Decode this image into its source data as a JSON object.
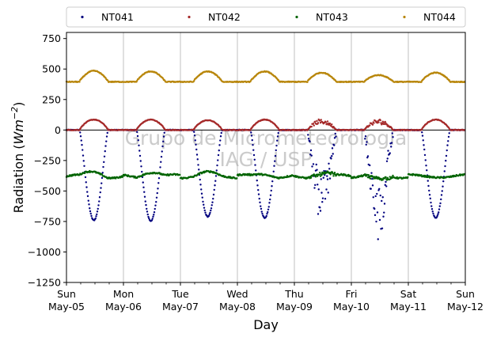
{
  "chart_data": {
    "type": "scatter",
    "xlabel": "Day",
    "ylabel_prefix": "Radiation (",
    "ylabel_unit_base": "Wm",
    "ylabel_unit_exp": "−2",
    "ylabel_suffix": ")",
    "ylim": [
      -1250,
      800
    ],
    "yticks": [
      -1250,
      -1000,
      -750,
      -500,
      -250,
      0,
      250,
      500,
      750
    ],
    "xlim": [
      "2019-05-05",
      "2019-05-12"
    ],
    "xticks": [
      {
        "dow": "Sun",
        "date": "May-05"
      },
      {
        "dow": "Mon",
        "date": "May-06"
      },
      {
        "dow": "Tue",
        "date": "May-07"
      },
      {
        "dow": "Wed",
        "date": "May-08"
      },
      {
        "dow": "Thu",
        "date": "May-09"
      },
      {
        "dow": "Fri",
        "date": "May-10"
      },
      {
        "dow": "Sat",
        "date": "May-11"
      },
      {
        "dow": "Sun",
        "date": "May-12"
      }
    ],
    "vertical_grid": true,
    "zero_line": true,
    "legend_position": "top (above plot), 4 columns",
    "watermark": [
      "Grupo de Micrometeorologia",
      "IAG / USP"
    ],
    "series": [
      {
        "name": "NT041",
        "color": "#00007f",
        "baseline": 0,
        "daily_min": [
          -740,
          -745,
          -710,
          -720,
          -720,
          -820,
          -720
        ],
        "daytime_noisy": [
          false,
          false,
          false,
          false,
          true,
          true,
          false
        ]
      },
      {
        "name": "NT042",
        "color": "#a52a2a",
        "baseline": 0,
        "daily_max": [
          85,
          85,
          80,
          85,
          80,
          80,
          85
        ],
        "daytime_noisy": [
          false,
          false,
          false,
          false,
          true,
          true,
          false
        ]
      },
      {
        "name": "NT043",
        "color": "#006400",
        "baseline": -380,
        "daily_max": [
          -345,
          -340,
          -355,
          -360,
          -355,
          -410,
          -375
        ],
        "daytime_noisy": [
          false,
          false,
          false,
          false,
          true,
          true,
          false
        ]
      },
      {
        "name": "NT044",
        "color": "#b8860b",
        "baseline": 400,
        "daily_max": [
          485,
          480,
          480,
          480,
          470,
          450,
          470
        ],
        "daytime_noisy": [
          false,
          false,
          false,
          false,
          true,
          true,
          false
        ]
      }
    ]
  }
}
